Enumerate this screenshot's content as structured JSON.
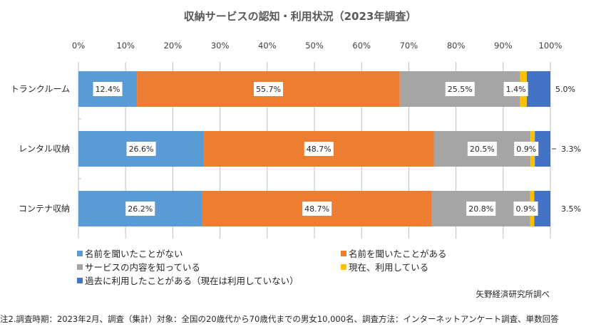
{
  "chart_data": {
    "type": "bar",
    "orientation": "horizontal",
    "stacked": "100%",
    "title": "収納サービスの認知・利用状況（2023年調査）",
    "xlabel": "",
    "ylabel": "",
    "xlim": [
      0,
      100
    ],
    "x_ticks": [
      "0%",
      "10%",
      "20%",
      "30%",
      "40%",
      "50%",
      "60%",
      "70%",
      "80%",
      "90%",
      "100%"
    ],
    "grid": true,
    "legend_position": "bottom",
    "categories": [
      "トランクルーム",
      "レンタル収納",
      "コンテナ収納"
    ],
    "series": [
      {
        "name": "名前を聞いたことがない",
        "color": "#5B9BD5",
        "values": [
          12.4,
          26.6,
          26.2
        ],
        "labels": [
          "12.4%",
          "26.6%",
          "26.2%"
        ]
      },
      {
        "name": "名前を聞いたことがある",
        "color": "#ED7D31",
        "values": [
          55.7,
          48.7,
          48.7
        ],
        "labels": [
          "55.7%",
          "48.7%",
          "48.7%"
        ]
      },
      {
        "name": "サービスの内容を知っている",
        "color": "#A5A5A5",
        "values": [
          25.5,
          20.5,
          20.8
        ],
        "labels": [
          "25.5%",
          "20.5%",
          "20.8%"
        ]
      },
      {
        "name": "現在、利用している",
        "color": "#FFC000",
        "values": [
          1.4,
          0.9,
          0.9
        ],
        "labels": [
          "1.4%",
          "0.9%",
          "0.9%"
        ]
      },
      {
        "name": "過去に利用したことがある（現在は利用していない）",
        "color": "#4472C4",
        "values": [
          5.0,
          3.3,
          3.5
        ],
        "labels": [
          "5.0%",
          "3.3%",
          "3.5%"
        ]
      }
    ]
  },
  "source": "矢野経済研究所調べ",
  "note": "注2.調査時期：2023年2月、調査（集計）対象：全国の20歳代から70歳代までの男女10,000名、調査方法：インターネットアンケート調査、単数回答"
}
